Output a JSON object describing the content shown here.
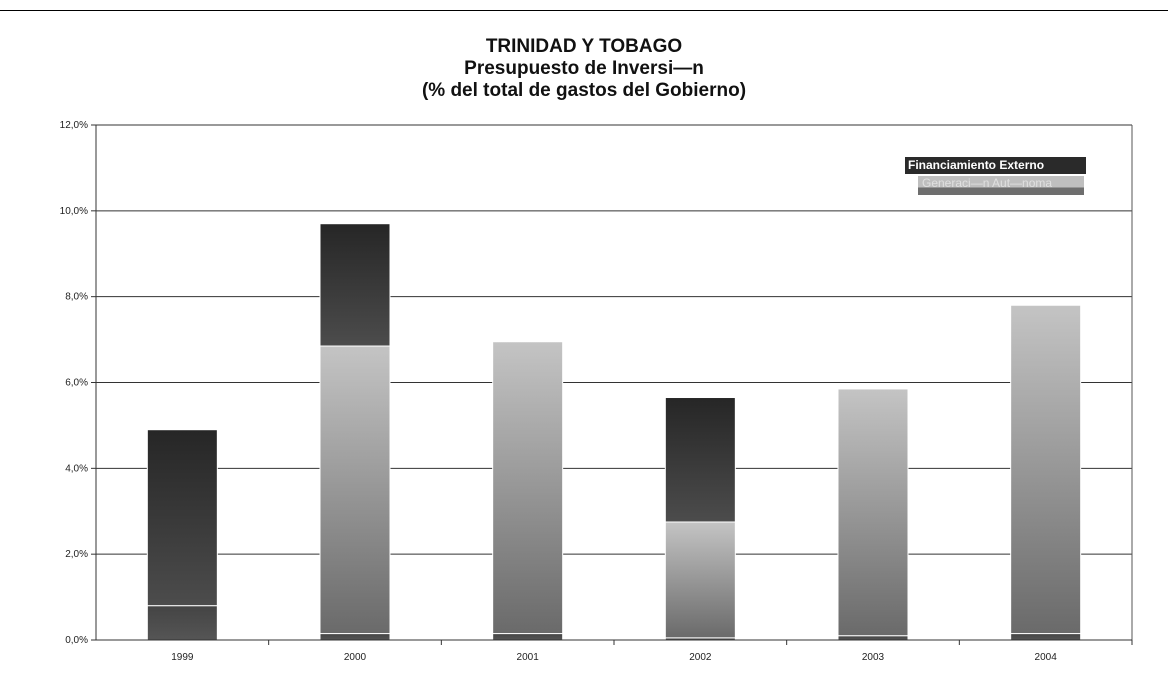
{
  "title": {
    "line1": "TRINIDAD Y TOBAGO",
    "line2": "Presupuesto de Inversi—n",
    "line3": "(% del total de gastos del Gobierno)"
  },
  "chart_data": {
    "type": "bar",
    "stacked": true,
    "title": "TRINIDAD Y TOBAGO Presupuesto de Inversi—n (% del total de gastos del Gobierno)",
    "categories": [
      "1999",
      "2000",
      "2001",
      "2002",
      "2003",
      "2004"
    ],
    "series": [
      {
        "name": "",
        "values": [
          0.8,
          0.15,
          0.15,
          0.05,
          0.1,
          0.15
        ],
        "color": "#4a4a4a"
      },
      {
        "name": "Generaci—n Aut—noma",
        "values": [
          0.0,
          6.7,
          6.8,
          2.7,
          5.75,
          7.65
        ],
        "color": "#9a9a9a"
      },
      {
        "name": "Financiamiento Externo",
        "values": [
          4.1,
          2.85,
          0.0,
          2.9,
          0.0,
          0.0
        ],
        "color": "#2e2e2e"
      }
    ],
    "ylim": [
      0,
      12
    ],
    "yticks": [
      "0,0%",
      "2,0%",
      "4,0%",
      "6,0%",
      "8,0%",
      "10,0%",
      "12,0%"
    ],
    "ylabel": "",
    "xlabel": "",
    "grid": true,
    "legend": "top-right"
  }
}
